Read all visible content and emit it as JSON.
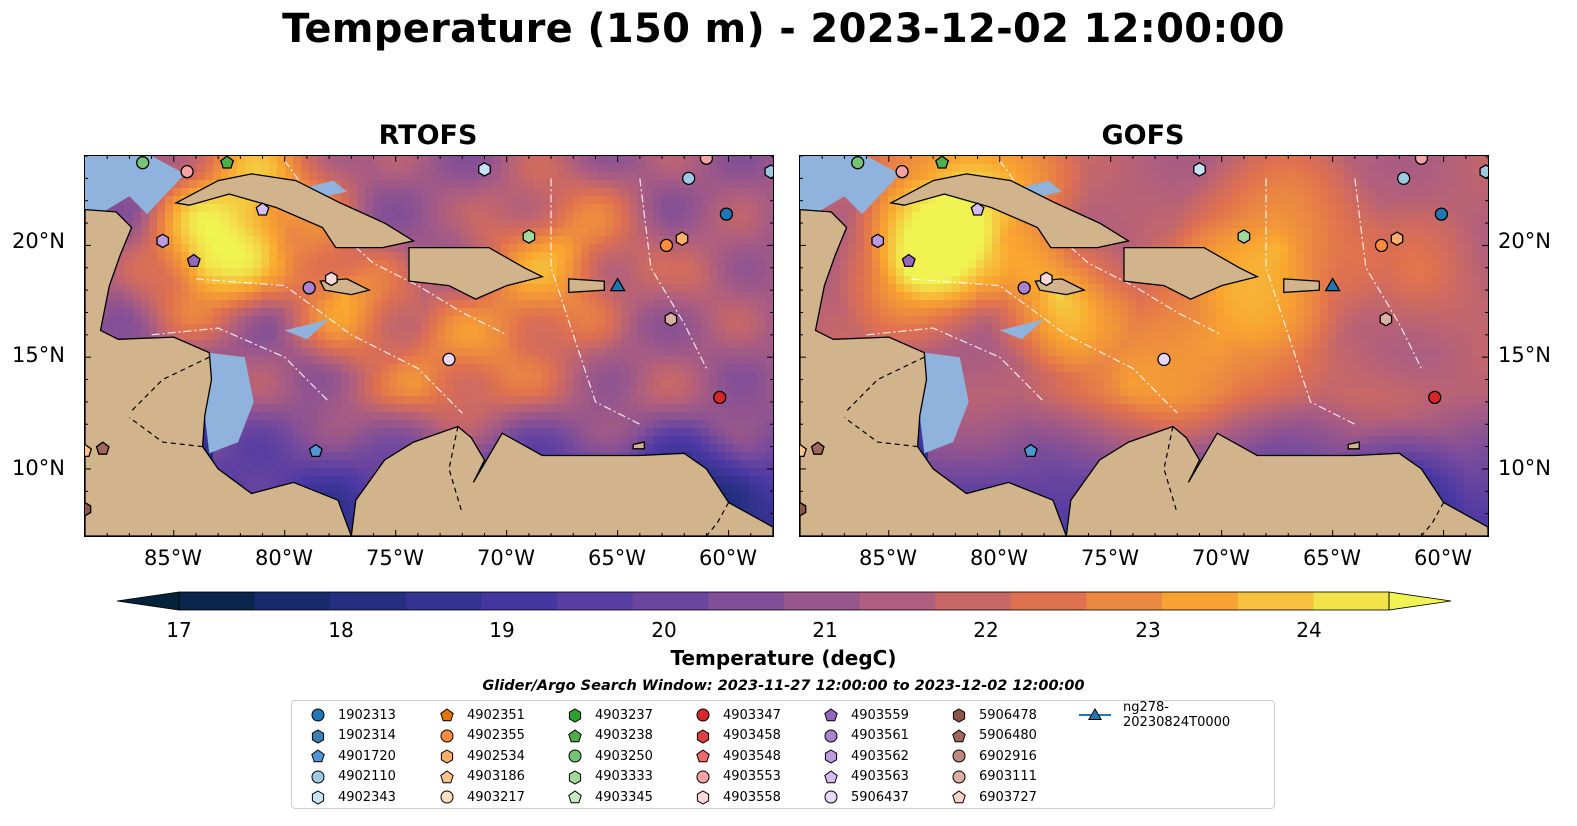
{
  "title": "Temperature (150 m) - 2023-12-02 12:00:00",
  "panels": [
    {
      "title": "RTOFS",
      "variant": "rtofs"
    },
    {
      "title": "GOFS",
      "variant": "gofs"
    }
  ],
  "map_extent": {
    "lon_min": -89,
    "lon_max": -58,
    "lat_min": 7,
    "lat_max": 24
  },
  "lat_ticks": [
    "10°N",
    "15°N",
    "20°N"
  ],
  "lon_ticks": [
    "85°W",
    "80°W",
    "75°W",
    "70°W",
    "65°W",
    "60°W"
  ],
  "colors": {
    "land": "#d2b48c",
    "shelf": "#8fb3dc",
    "colormap": "thermal"
  },
  "colorbar": {
    "label": "Temperature (degC)",
    "min": 16.75,
    "max": 24.75,
    "step": 0.5,
    "ticks": [
      "17",
      "18",
      "19",
      "20",
      "21",
      "22",
      "23",
      "24"
    ],
    "extend": "both"
  },
  "search_window": "Glider/Argo Search Window: 2023-11-27 12:00:00 to 2023-12-02 12:00:00",
  "legend": [
    {
      "label": "1902313",
      "marker": "circle",
      "color": "#1f77b4"
    },
    {
      "label": "1902314",
      "marker": "hexagon",
      "color": "#3b7fb4"
    },
    {
      "label": "4901720",
      "marker": "pentagon",
      "color": "#5096d4"
    },
    {
      "label": "4902110",
      "marker": "circle",
      "color": "#9ecae1"
    },
    {
      "label": "4902343",
      "marker": "hexagon",
      "color": "#c6e2f5"
    },
    {
      "label": "4902351",
      "marker": "pentagon",
      "color": "#e6740e"
    },
    {
      "label": "4902355",
      "marker": "circle",
      "color": "#fd8d3c"
    },
    {
      "label": "4902534",
      "marker": "hexagon",
      "color": "#fdae6b"
    },
    {
      "label": "4903186",
      "marker": "pentagon",
      "color": "#fdc38a"
    },
    {
      "label": "4903217",
      "marker": "circle",
      "color": "#fde0c0"
    },
    {
      "label": "4903237",
      "marker": "hexagon",
      "color": "#2ca02c"
    },
    {
      "label": "4903238",
      "marker": "pentagon",
      "color": "#4daf4a"
    },
    {
      "label": "4903250",
      "marker": "circle",
      "color": "#74c476"
    },
    {
      "label": "4903333",
      "marker": "hexagon",
      "color": "#a1d99b"
    },
    {
      "label": "4903345",
      "marker": "pentagon",
      "color": "#c7e9c0"
    },
    {
      "label": "4903347",
      "marker": "circle",
      "color": "#d62728"
    },
    {
      "label": "4903458",
      "marker": "hexagon",
      "color": "#de4040"
    },
    {
      "label": "4903548",
      "marker": "pentagon",
      "color": "#ef6b6b"
    },
    {
      "label": "4903553",
      "marker": "circle",
      "color": "#f4a3a3"
    },
    {
      "label": "4903558",
      "marker": "hexagon",
      "color": "#fbd9d9"
    },
    {
      "label": "4903559",
      "marker": "pentagon",
      "color": "#9467bd"
    },
    {
      "label": "4903561",
      "marker": "circle",
      "color": "#a983cf"
    },
    {
      "label": "4903562",
      "marker": "hexagon",
      "color": "#bc9be0"
    },
    {
      "label": "4903563",
      "marker": "pentagon",
      "color": "#d4bdf0"
    },
    {
      "label": "5906437",
      "marker": "circle",
      "color": "#e8d8f8"
    },
    {
      "label": "5906478",
      "marker": "hexagon",
      "color": "#8c564b"
    },
    {
      "label": "5906480",
      "marker": "pentagon",
      "color": "#a0685a"
    },
    {
      "label": "6902916",
      "marker": "circle",
      "color": "#bc8a7e"
    },
    {
      "label": "6903111",
      "marker": "circle",
      "color": "#dbb0a3"
    },
    {
      "label": "6903727",
      "marker": "pentagon",
      "color": "#f5d3c8"
    },
    {
      "label": "ng278-20230824T0000",
      "marker": "triangle-line",
      "color": "#1f77b4"
    }
  ],
  "markers": [
    {
      "lon": -86.4,
      "lat": 23.7,
      "shape": "circle",
      "color": "#74c476"
    },
    {
      "lon": -84.4,
      "lat": 23.3,
      "shape": "circle",
      "color": "#f4a3a3"
    },
    {
      "lon": -82.6,
      "lat": 23.7,
      "shape": "pentagon",
      "color": "#4daf4a"
    },
    {
      "lon": -81.0,
      "lat": 21.6,
      "shape": "pentagon",
      "color": "#d4bdf0"
    },
    {
      "lon": -85.5,
      "lat": 20.2,
      "shape": "hexagon",
      "color": "#bc9be0"
    },
    {
      "lon": -84.1,
      "lat": 19.3,
      "shape": "pentagon",
      "color": "#9467bd"
    },
    {
      "lon": -78.9,
      "lat": 18.1,
      "shape": "circle",
      "color": "#a983cf"
    },
    {
      "lon": -77.9,
      "lat": 18.5,
      "shape": "hexagon",
      "color": "#fbd9d9"
    },
    {
      "lon": -71.0,
      "lat": 23.4,
      "shape": "hexagon",
      "color": "#c6e2f5"
    },
    {
      "lon": -69.0,
      "lat": 20.4,
      "shape": "hexagon",
      "color": "#a1d99b"
    },
    {
      "lon": -72.6,
      "lat": 14.9,
      "shape": "circle",
      "color": "#e8d8f8"
    },
    {
      "lon": -78.6,
      "lat": 10.8,
      "shape": "pentagon",
      "color": "#5096d4"
    },
    {
      "lon": -65.0,
      "lat": 18.2,
      "shape": "triangle",
      "color": "#1f77b4"
    },
    {
      "lon": -62.6,
      "lat": 16.7,
      "shape": "hexagon",
      "color": "#dbb0a3"
    },
    {
      "lon": -62.8,
      "lat": 20.0,
      "shape": "circle",
      "color": "#fd8d3c"
    },
    {
      "lon": -62.1,
      "lat": 20.3,
      "shape": "hexagon",
      "color": "#fdae6b"
    },
    {
      "lon": -61.8,
      "lat": 23.0,
      "shape": "circle",
      "color": "#9ecae1"
    },
    {
      "lon": -61.0,
      "lat": 23.9,
      "shape": "circle",
      "color": "#f4a3a3"
    },
    {
      "lon": -60.1,
      "lat": 21.4,
      "shape": "circle",
      "color": "#1f77b4"
    },
    {
      "lon": -58.1,
      "lat": 23.3,
      "shape": "hexagon",
      "color": "#9ecae1"
    },
    {
      "lon": -60.4,
      "lat": 13.2,
      "shape": "circle",
      "color": "#d62728"
    },
    {
      "lon": -89.0,
      "lat": 10.8,
      "shape": "pentagon",
      "color": "#fdc38a"
    },
    {
      "lon": -88.2,
      "lat": 10.9,
      "shape": "pentagon",
      "color": "#a0685a"
    },
    {
      "lon": -89.0,
      "lat": 8.2,
      "shape": "hexagon",
      "color": "#8c564b"
    }
  ]
}
